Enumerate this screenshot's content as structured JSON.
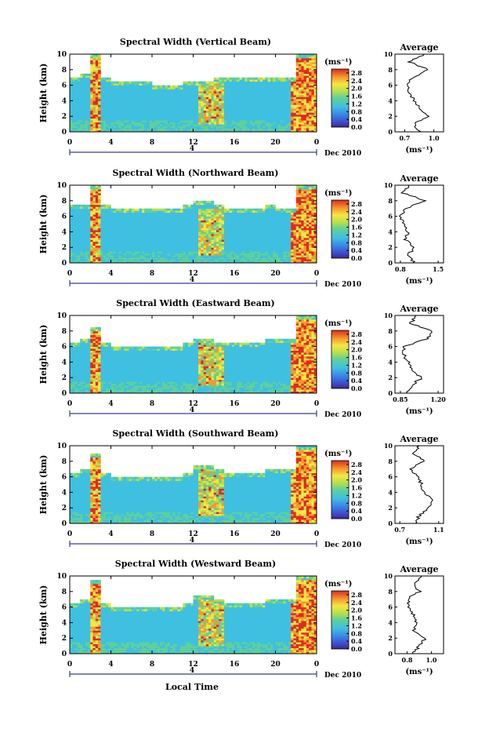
{
  "figure": {
    "xlabel_bottom": "Local Time",
    "date_label": "Dec 2010"
  },
  "chart_data": [
    {
      "type": "heatmap",
      "title": "Spectral Width (Vertical Beam)",
      "xlabel": "",
      "ylabel": "Height (km)",
      "x_ticks": [
        "0",
        "4",
        "8",
        "12",
        "16",
        "20",
        "0"
      ],
      "y_ticks": [
        "0",
        "2",
        "4",
        "6",
        "8",
        "10"
      ],
      "xlim": [
        0,
        24
      ],
      "ylim": [
        0,
        10
      ],
      "date_marker": "4",
      "colorbar": {
        "unit": "(ms⁻¹)",
        "ticks": [
          "0.0",
          "0.4",
          "0.8",
          "1.2",
          "1.6",
          "2.0",
          "2.4",
          "2.8"
        ],
        "range": [
          0,
          3.0
        ]
      },
      "echo_top_km": [
        7.0,
        7.5,
        10.0,
        7.0,
        6.5,
        6.5,
        6.5,
        6.5,
        6.0,
        6.0,
        6.0,
        6.5,
        6.5,
        6.5,
        7.0,
        7.0,
        7.0,
        7.0,
        7.0,
        7.0,
        7.0,
        7.0,
        10.0,
        10.0
      ],
      "average": {
        "title": "Average",
        "xlabel": "(ms⁻¹)",
        "x_ticks": [
          "0.7",
          "1.0"
        ],
        "xlim": [
          0.6,
          1.1
        ],
        "y_ticks": [
          "0",
          "2",
          "4",
          "6",
          "8",
          "10"
        ],
        "height_km": [
          0,
          1,
          2,
          3,
          4,
          5,
          6,
          7,
          8,
          9,
          10
        ],
        "value": [
          0.85,
          0.8,
          0.95,
          0.85,
          0.8,
          0.75,
          0.74,
          0.78,
          0.95,
          0.75,
          0.9
        ]
      }
    },
    {
      "type": "heatmap",
      "title": "Spectral Width (Northward Beam)",
      "xlabel": "",
      "ylabel": "Height (km)",
      "x_ticks": [
        "0",
        "4",
        "8",
        "12",
        "16",
        "20",
        "0"
      ],
      "y_ticks": [
        "0",
        "2",
        "4",
        "6",
        "8",
        "10"
      ],
      "xlim": [
        0,
        24
      ],
      "ylim": [
        0,
        10
      ],
      "date_marker": "4",
      "colorbar": {
        "unit": "(ms⁻¹)",
        "ticks": [
          "0.0",
          "0.4",
          "0.8",
          "1.2",
          "1.6",
          "2.0",
          "2.4",
          "2.8"
        ],
        "range": [
          0,
          3.0
        ]
      },
      "echo_top_km": [
        7.5,
        7.5,
        10.0,
        7.5,
        7.0,
        7.0,
        7.0,
        7.0,
        7.0,
        7.0,
        7.0,
        7.5,
        8.0,
        8.0,
        7.5,
        7.0,
        7.0,
        7.0,
        7.0,
        7.5,
        7.0,
        7.0,
        10.0,
        10.0
      ],
      "average": {
        "title": "Average",
        "xlabel": "(ms⁻¹)",
        "x_ticks": [
          "0.8",
          "1.5"
        ],
        "xlim": [
          0.7,
          1.6
        ],
        "y_ticks": [
          "0",
          "2",
          "4",
          "6",
          "8",
          "10"
        ],
        "height_km": [
          0,
          1,
          2,
          3,
          4,
          5,
          6,
          7,
          8,
          9,
          10
        ],
        "value": [
          1.05,
          0.95,
          1.05,
          0.9,
          0.95,
          0.85,
          0.8,
          0.9,
          1.25,
          0.85,
          0.95
        ]
      }
    },
    {
      "type": "heatmap",
      "title": "Spectral Width (Eastward Beam)",
      "xlabel": "",
      "ylabel": "Height (km)",
      "x_ticks": [
        "0",
        "4",
        "8",
        "12",
        "16",
        "20",
        "0"
      ],
      "y_ticks": [
        "0",
        "2",
        "4",
        "6",
        "8",
        "10"
      ],
      "xlim": [
        0,
        24
      ],
      "ylim": [
        0,
        10
      ],
      "date_marker": "4",
      "colorbar": {
        "unit": "(ms⁻¹)",
        "ticks": [
          "0.0",
          "0.4",
          "0.8",
          "1.2",
          "1.6",
          "2.0",
          "2.4",
          "2.8"
        ],
        "range": [
          0,
          3.0
        ]
      },
      "echo_top_km": [
        6.5,
        7.0,
        8.5,
        6.5,
        6.0,
        6.0,
        6.0,
        6.0,
        6.0,
        6.0,
        6.0,
        6.5,
        7.0,
        7.0,
        6.5,
        6.5,
        6.5,
        6.5,
        6.5,
        7.0,
        7.0,
        7.0,
        10.0,
        10.0
      ],
      "average": {
        "title": "Average",
        "xlabel": "(ms⁻¹)",
        "x_ticks": [
          "0.85",
          "1.20"
        ],
        "xlim": [
          0.8,
          1.25
        ],
        "y_ticks": [
          "0",
          "2",
          "4",
          "6",
          "8",
          "10"
        ],
        "height_km": [
          0,
          1,
          2,
          3,
          4,
          5,
          6,
          7,
          8,
          9,
          10
        ],
        "value": [
          0.9,
          0.95,
          1.05,
          0.95,
          0.92,
          0.88,
          0.88,
          1.1,
          1.15,
          0.95,
          1.0
        ]
      }
    },
    {
      "type": "heatmap",
      "title": "Spectral Width (Southward Beam)",
      "xlabel": "",
      "ylabel": "Height (km)",
      "x_ticks": [
        "0",
        "4",
        "8",
        "12",
        "16",
        "20",
        "0"
      ],
      "y_ticks": [
        "0",
        "2",
        "4",
        "6",
        "8",
        "10"
      ],
      "xlim": [
        0,
        24
      ],
      "ylim": [
        0,
        10
      ],
      "date_marker": "4",
      "colorbar": {
        "unit": "(ms⁻¹)",
        "ticks": [
          "0.0",
          "0.4",
          "0.8",
          "1.2",
          "1.6",
          "2.0",
          "2.4",
          "2.8"
        ],
        "range": [
          0,
          3.0
        ]
      },
      "echo_top_km": [
        6.5,
        7.0,
        9.0,
        6.5,
        6.0,
        6.0,
        6.0,
        6.0,
        6.0,
        6.0,
        6.0,
        6.5,
        7.5,
        7.5,
        7.0,
        6.5,
        6.5,
        6.5,
        6.5,
        7.0,
        7.0,
        7.0,
        10.0,
        10.0
      ],
      "average": {
        "title": "Average",
        "xlabel": "(ms⁻¹)",
        "x_ticks": [
          "0.7",
          "1.1"
        ],
        "xlim": [
          0.65,
          1.15
        ],
        "y_ticks": [
          "0",
          "2",
          "4",
          "6",
          "8",
          "10"
        ],
        "height_km": [
          0,
          1,
          2,
          3,
          4,
          5,
          6,
          7,
          8,
          9,
          10
        ],
        "value": [
          0.85,
          0.9,
          1.0,
          1.05,
          0.95,
          0.92,
          0.9,
          0.8,
          0.95,
          0.85,
          0.9
        ]
      }
    },
    {
      "type": "heatmap",
      "title": "Spectral Width (Westward Beam)",
      "xlabel": "Local Time",
      "ylabel": "Height (km)",
      "x_ticks": [
        "0",
        "4",
        "8",
        "12",
        "16",
        "20",
        "0"
      ],
      "y_ticks": [
        "0",
        "2",
        "4",
        "6",
        "8",
        "10"
      ],
      "xlim": [
        0,
        24
      ],
      "ylim": [
        0,
        10
      ],
      "date_marker": "4",
      "colorbar": {
        "unit": "(ms⁻¹)",
        "ticks": [
          "0.0",
          "0.4",
          "0.8",
          "1.2",
          "1.6",
          "2.0",
          "2.4",
          "2.8"
        ],
        "range": [
          0,
          3.0
        ]
      },
      "echo_top_km": [
        6.5,
        7.0,
        9.5,
        6.5,
        6.0,
        6.0,
        6.0,
        6.0,
        6.0,
        6.0,
        6.0,
        6.5,
        7.5,
        7.5,
        7.0,
        6.5,
        6.5,
        6.5,
        6.5,
        7.0,
        7.0,
        7.0,
        10.0,
        10.0
      ],
      "average": {
        "title": "Average",
        "xlabel": "(ms⁻¹)",
        "x_ticks": [
          "0.8",
          "1.0"
        ],
        "xlim": [
          0.7,
          1.1
        ],
        "y_ticks": [
          "0",
          "2",
          "4",
          "6",
          "8",
          "10"
        ],
        "height_km": [
          0,
          1,
          2,
          3,
          4,
          5,
          6,
          7,
          8,
          9,
          10
        ],
        "value": [
          0.85,
          0.9,
          0.95,
          0.85,
          0.88,
          0.85,
          0.82,
          0.8,
          0.9,
          0.85,
          0.92
        ]
      }
    }
  ]
}
